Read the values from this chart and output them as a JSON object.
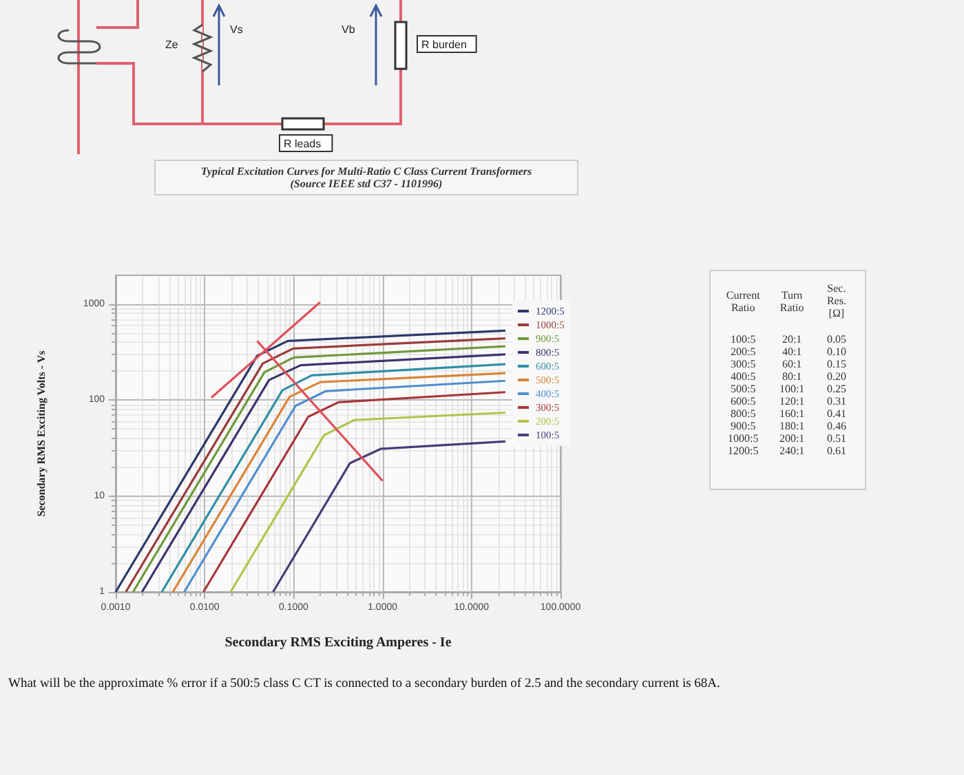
{
  "chart_data": {
    "type": "line",
    "title": "Typical Excitation Curves for Multi-Ratio C Class Current Transformers",
    "subtitle": "(Source IEEE std C37 - 1101996)",
    "xlabel": "Secondary RMS Exciting Amperes - Ie",
    "ylabel": "Secondary RMS Exciting Volts - Vs",
    "log": "xy",
    "xlim": [
      0.001,
      100
    ],
    "xticks": [
      {
        "value": 0.001,
        "label": "0.0010"
      },
      {
        "value": 0.01,
        "label": "0.0100"
      },
      {
        "value": 0.1,
        "label": "0.1000"
      },
      {
        "value": 1,
        "label": "1.0000"
      },
      {
        "value": 10,
        "label": "10.0000"
      },
      {
        "value": 100,
        "label": "100.0000"
      }
    ],
    "ylim": [
      1,
      2000
    ],
    "yticks": [
      1,
      10,
      100,
      1000
    ],
    "grid": true,
    "legend": "right",
    "marker": "none",
    "line_style": "solid",
    "series": [
      {
        "name": "1200:5",
        "color": "#2b3a6b",
        "x": [
          0.001,
          0.039,
          0.086,
          24
        ],
        "values": [
          1,
          290,
          414,
          530
        ]
      },
      {
        "name": "1000:5",
        "color": "#9c3b3b",
        "x": [
          0.0013,
          0.045,
          0.099,
          24
        ],
        "values": [
          1,
          241,
          345,
          440
        ]
      },
      {
        "name": "900:5",
        "color": "#6f9a3a",
        "x": [
          0.00157,
          0.047,
          0.1,
          24
        ],
        "values": [
          1,
          195,
          278,
          364
        ]
      },
      {
        "name": "800:5",
        "color": "#3d3470",
        "x": [
          0.00198,
          0.053,
          0.12,
          24
        ],
        "values": [
          1,
          162,
          231,
          300
        ]
      },
      {
        "name": "600:5",
        "color": "#2f8fa8",
        "x": [
          0.0033,
          0.075,
          0.16,
          24
        ],
        "values": [
          1,
          127,
          181,
          237
        ]
      },
      {
        "name": "500:5",
        "color": "#d9853b",
        "x": [
          0.0044,
          0.09,
          0.2,
          24
        ],
        "values": [
          1,
          108,
          154,
          191
        ]
      },
      {
        "name": "400:5",
        "color": "#4f8fcf",
        "x": [
          0.0059,
          0.105,
          0.23,
          24
        ],
        "values": [
          1,
          87,
          124,
          159
        ]
      },
      {
        "name": "300:5",
        "color": "#a8353a",
        "x": [
          0.0097,
          0.146,
          0.32,
          24
        ],
        "values": [
          1,
          67,
          95,
          121
        ]
      },
      {
        "name": "200:5",
        "color": "#b5c24a",
        "x": [
          0.0196,
          0.22,
          0.48,
          24
        ],
        "values": [
          1,
          43,
          62,
          74
        ]
      },
      {
        "name": "100:5",
        "color": "#4a3c7a",
        "x": [
          0.0588,
          0.43,
          0.95,
          24
        ],
        "values": [
          1,
          22,
          31,
          37
        ]
      },
      {
        "color": "#e0505a",
        "x": [
          0.0119,
          0.198
        ],
        "values": [
          106,
          1045
        ]
      },
      {
        "color": "#e0505a",
        "x": [
          0.0389,
          1
        ],
        "values": [
          414,
          14.4
        ]
      }
    ],
    "annotations": [
      "Ze",
      "Vs",
      "Vb",
      "R burden",
      "R leads",
      "Current Ratio\tTurn Ratio\tSec. Res. [Ω]",
      "100:5\t20:1\t0.05",
      "200:5\t40:1\t0.10",
      "300:5\t60:1\t0.15",
      "400:5\t80:1\t0.20",
      "500:5\t100:1\t0.25",
      "600:5\t120:1\t0.31",
      "800:5\t160:1\t0.41",
      "900:5\t180:1\t0.46",
      "1000:5\t200:1\t0.51",
      "1200:5\t240:1\t0.61",
      "What will be the approximate % error if a 500:5 class C CT is connected to a secondary burden of 2.5 and the secondary current is 68A."
    ]
  }
}
